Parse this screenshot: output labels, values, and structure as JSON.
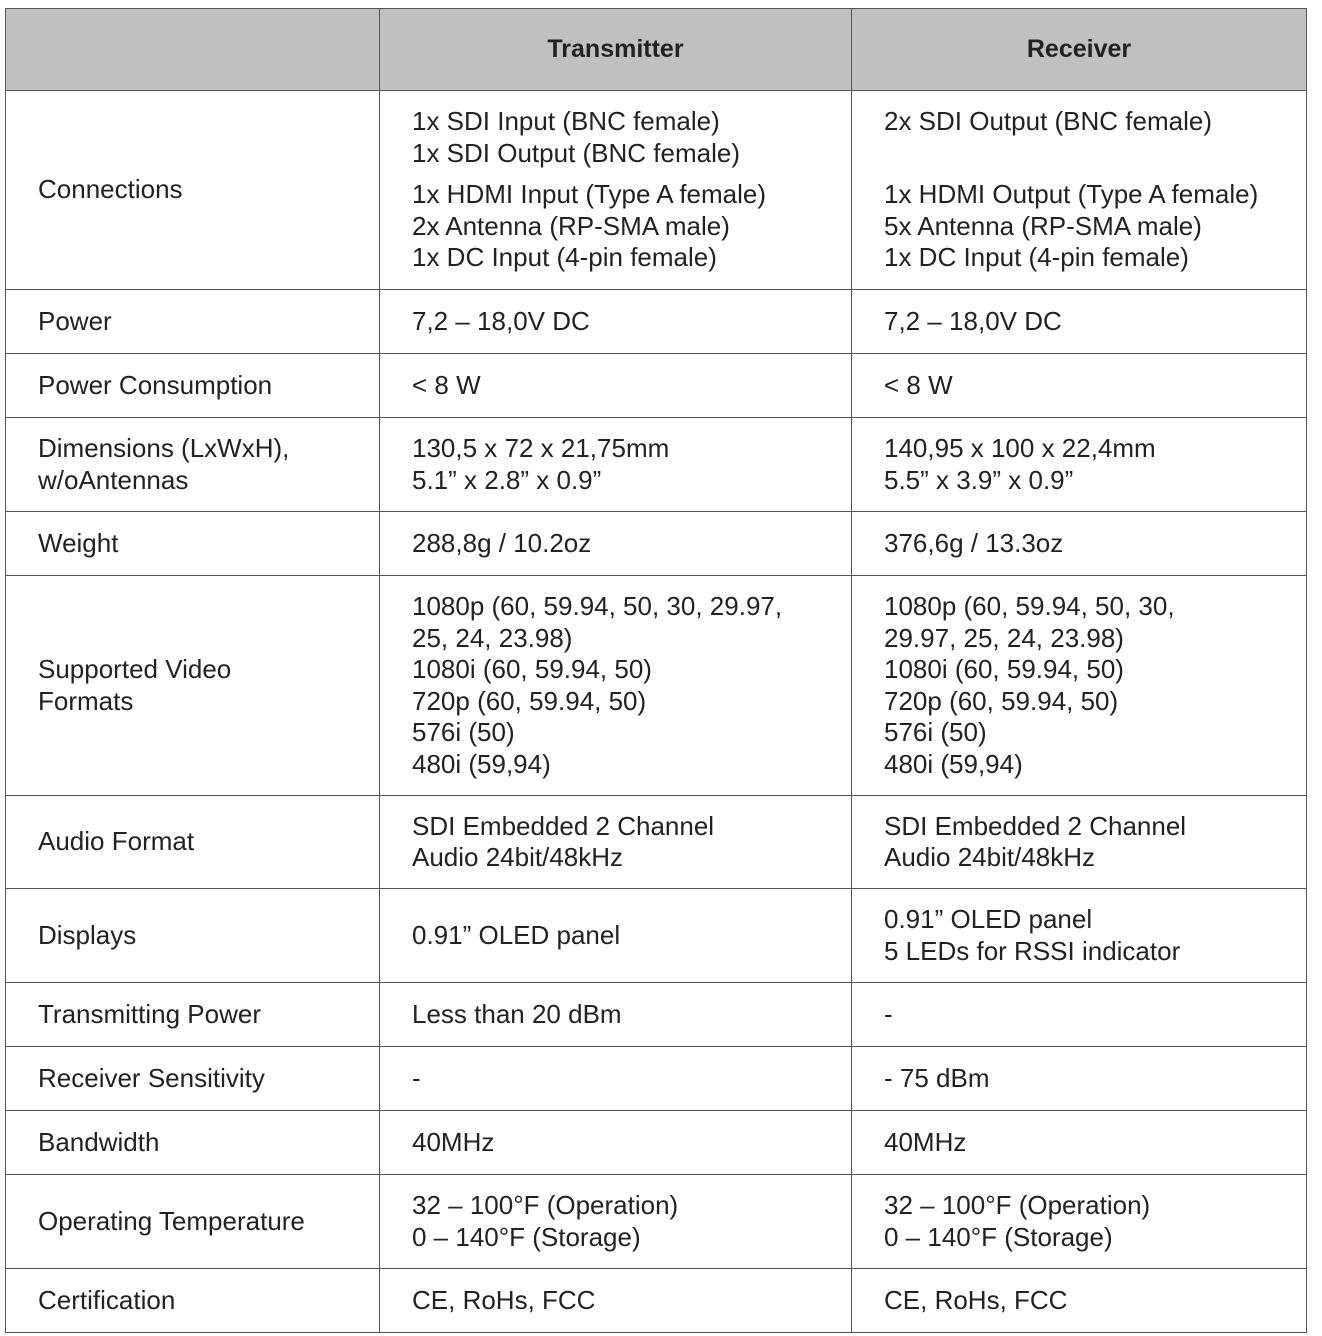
{
  "header": {
    "col0": "",
    "col1": "Transmitter",
    "col2": "Receiver"
  },
  "rows": [
    {
      "label": [
        "Connections"
      ],
      "tx": [
        [
          "1x SDI Input (BNC female)",
          "1x SDI Output (BNC female)"
        ],
        [
          "1x HDMI Input (Type A female)",
          "2x Antenna (RP-SMA male)",
          "1x DC Input (4-pin female)"
        ]
      ],
      "rx": [
        [
          "2x SDI Output (BNC female)",
          ""
        ],
        [
          "1x HDMI Output (Type A female)",
          "5x Antenna (RP-SMA male)",
          "1x DC Input (4-pin female)"
        ]
      ]
    },
    {
      "label": [
        "Power"
      ],
      "tx": [
        [
          "7,2 – 18,0V DC"
        ]
      ],
      "rx": [
        [
          "7,2 – 18,0V DC"
        ]
      ]
    },
    {
      "label": [
        "Power Consumption"
      ],
      "tx": [
        [
          "< 8 W"
        ]
      ],
      "rx": [
        [
          "< 8 W"
        ]
      ]
    },
    {
      "label": [
        "Dimensions (LxWxH),",
        "w/oAntennas"
      ],
      "tx": [
        [
          "130,5 x 72 x 21,75mm",
          "5.1” x 2.8” x 0.9”"
        ]
      ],
      "rx": [
        [
          "140,95 x 100 x 22,4mm",
          "5.5” x 3.9” x 0.9”"
        ]
      ]
    },
    {
      "label": [
        "Weight"
      ],
      "tx": [
        [
          "288,8g / 10.2oz"
        ]
      ],
      "rx": [
        [
          "376,6g / 13.3oz"
        ]
      ]
    },
    {
      "label": [
        "Supported Video",
        "Formats"
      ],
      "tx": [
        [
          "1080p (60, 59.94, 50, 30, 29.97,",
          "25, 24, 23.98)",
          "1080i (60, 59.94, 50)",
          "720p (60, 59.94, 50)",
          "576i (50)",
          "480i (59,94)"
        ]
      ],
      "rx": [
        [
          "1080p (60, 59.94, 50, 30,",
          "29.97, 25, 24, 23.98)",
          "1080i (60, 59.94, 50)",
          "720p (60, 59.94, 50)",
          "576i (50)",
          "480i (59,94)"
        ]
      ]
    },
    {
      "label": [
        "Audio Format"
      ],
      "tx": [
        [
          "SDI Embedded 2 Channel",
          "Audio 24bit/48kHz"
        ]
      ],
      "rx": [
        [
          "SDI Embedded 2 Channel",
          "Audio 24bit/48kHz"
        ]
      ]
    },
    {
      "label": [
        "Displays"
      ],
      "tx": [
        [
          "0.91” OLED panel"
        ]
      ],
      "rx": [
        [
          "0.91” OLED panel",
          "5 LEDs for RSSI indicator"
        ]
      ]
    },
    {
      "label": [
        "Transmitting Power"
      ],
      "tx": [
        [
          "Less than 20 dBm"
        ]
      ],
      "rx": [
        [
          "-"
        ]
      ]
    },
    {
      "label": [
        "Receiver Sensitivity"
      ],
      "tx": [
        [
          "-"
        ]
      ],
      "rx": [
        [
          "- 75 dBm"
        ]
      ]
    },
    {
      "label": [
        "Bandwidth"
      ],
      "tx": [
        [
          "40MHz"
        ]
      ],
      "rx": [
        [
          "40MHz"
        ]
      ]
    },
    {
      "label": [
        "Operating Temperature"
      ],
      "tx": [
        [
          "32 – 100°F (Operation)",
          "0 – 140°F (Storage)"
        ]
      ],
      "rx": [
        [
          "32 – 100°F (Operation)",
          "0 – 140°F (Storage)"
        ]
      ]
    },
    {
      "label": [
        "Certification"
      ],
      "tx": [
        [
          "CE, RoHs, FCC"
        ]
      ],
      "rx": [
        [
          "CE, RoHs, FCC"
        ]
      ]
    }
  ]
}
